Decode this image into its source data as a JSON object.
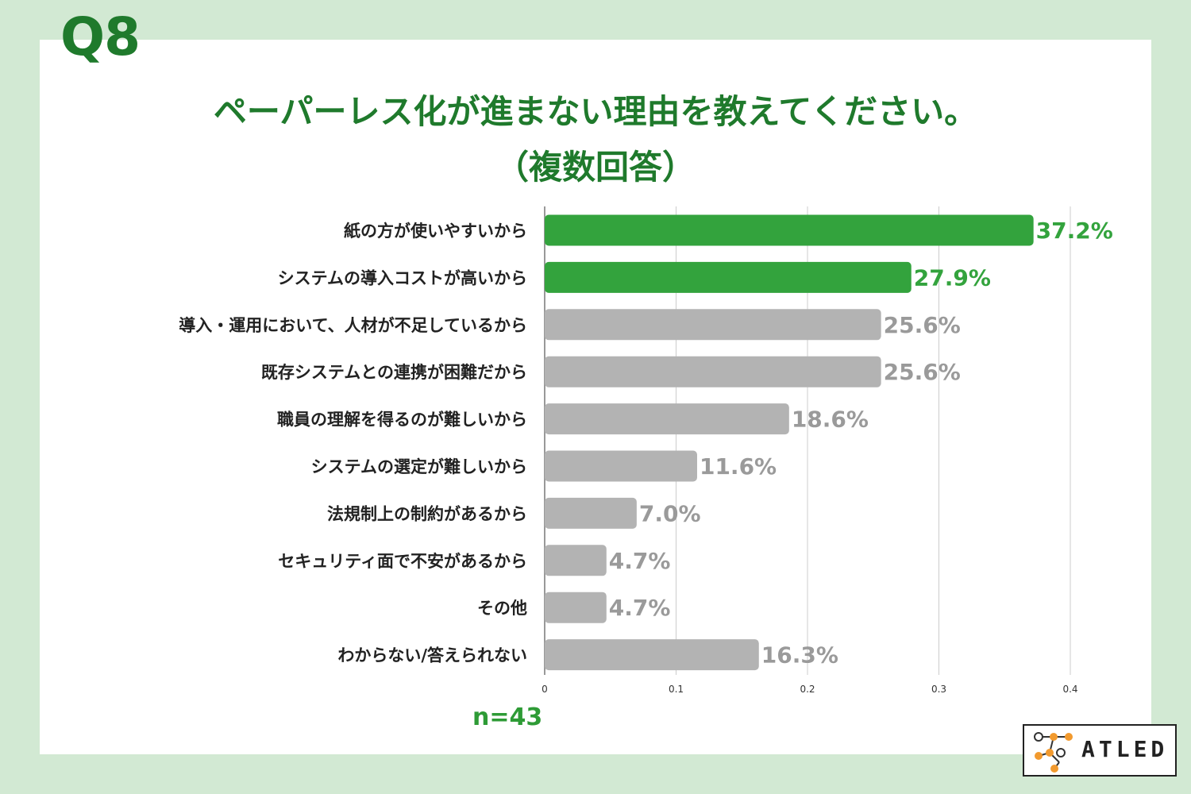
{
  "header": {
    "q_label": "Q8",
    "title_line1": "ペーパーレス化が進まない理由を教えてください。",
    "title_line2": "（複数回答）"
  },
  "sample_size": "n=43",
  "logo": {
    "text": "ATLED",
    "icon": "atled-network-logo-icon"
  },
  "colors": {
    "highlight": "#33a33d",
    "normal": "#b3b3b3",
    "title": "#1f7a2c",
    "background": "#d2e9d3"
  },
  "chart_data": {
    "type": "bar",
    "orientation": "horizontal",
    "categories": [
      "紙の方が使いやすいから",
      "システムの導入コストが高いから",
      "導入・運用において、人材が不足しているから",
      "既存システムとの連携が困難だから",
      "職員の理解を得るのが難しいから",
      "システムの選定が難しいから",
      "法規制上の制約があるから",
      "セキュリティ面で不安があるから",
      "その他",
      "わからない/答えられない"
    ],
    "values": [
      0.372,
      0.279,
      0.256,
      0.256,
      0.186,
      0.116,
      0.07,
      0.047,
      0.047,
      0.163
    ],
    "data_labels": [
      "37.2%",
      "27.9%",
      "25.6%",
      "25.6%",
      "18.6%",
      "11.6%",
      "7.0%",
      "4.7%",
      "4.7%",
      "16.3%"
    ],
    "highlighted": [
      true,
      true,
      false,
      false,
      false,
      false,
      false,
      false,
      false,
      false
    ],
    "x_ticks": [
      "0",
      "0.1",
      "0.2",
      "0.3",
      "0.4"
    ],
    "xlim": [
      0,
      0.4
    ],
    "grid": true,
    "legend": "none"
  }
}
